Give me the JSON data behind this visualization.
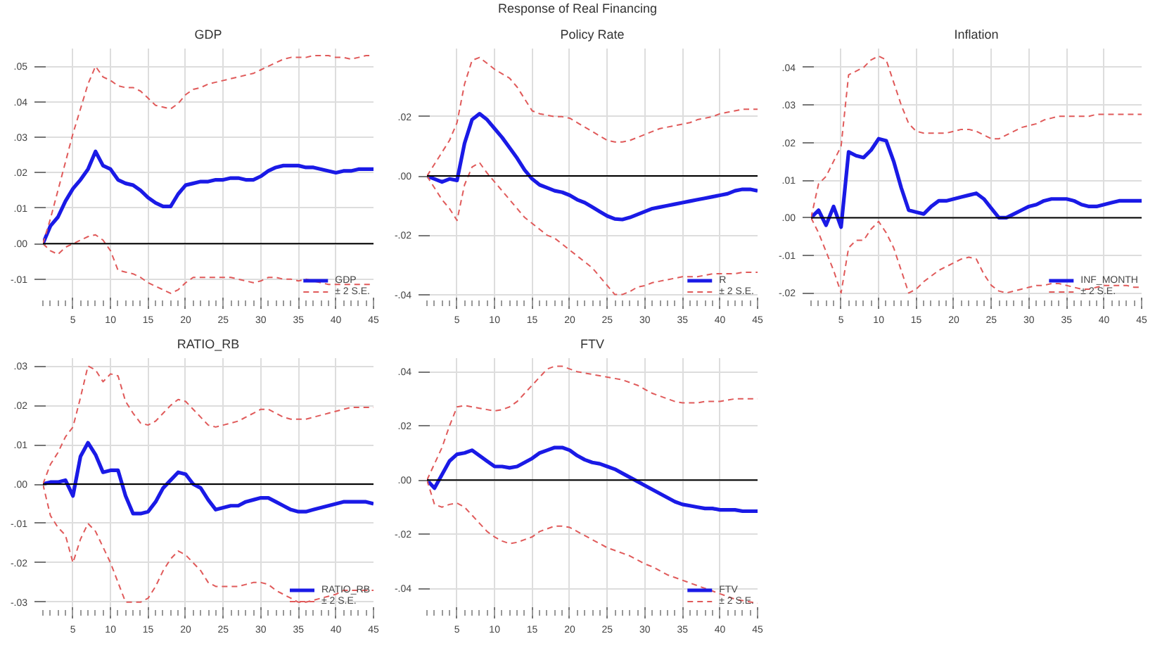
{
  "chart_data": [
    {
      "type": "line",
      "title": "GDP",
      "annotations": [
        "Response of Real Financing"
      ],
      "x": [
        1,
        2,
        3,
        4,
        5,
        6,
        7,
        8,
        9,
        10,
        11,
        12,
        13,
        14,
        15,
        16,
        17,
        18,
        19,
        20,
        21,
        22,
        23,
        24,
        25,
        26,
        27,
        28,
        29,
        30,
        31,
        32,
        33,
        34,
        35,
        36,
        37,
        38,
        39,
        40,
        41,
        42,
        43,
        44,
        45
      ],
      "xlim": [
        1,
        45
      ],
      "xticks": [
        5,
        10,
        15,
        20,
        25,
        30,
        35,
        40,
        45
      ],
      "ylim": [
        -0.016,
        0.055
      ],
      "yticks": [
        {
          "value": -0.01,
          "label": "-.01"
        },
        {
          "value": 0,
          "label": ".00"
        },
        {
          "value": 0.01,
          "label": ".01"
        },
        {
          "value": 0.02,
          "label": ".02"
        },
        {
          "value": 0.03,
          "label": ".03"
        },
        {
          "value": 0.04,
          "label": ".04"
        },
        {
          "value": 0.05,
          "label": ".05"
        }
      ],
      "grid": true,
      "legend": "bottom right",
      "ref_lines": [
        {
          "axis": "y",
          "value": 0,
          "color": "#000000"
        }
      ],
      "series": [
        {
          "name": "GDP",
          "color": "#1a1ae6",
          "line_style": "solid",
          "values": [
            0,
            0.005,
            0.0075,
            0.012,
            0.0155,
            0.018,
            0.021,
            0.026,
            0.022,
            0.021,
            0.018,
            0.017,
            0.0165,
            0.015,
            0.013,
            0.0115,
            0.0105,
            0.0105,
            0.014,
            0.0165,
            0.017,
            0.0175,
            0.0175,
            0.018,
            0.018,
            0.0185,
            0.0185,
            0.018,
            0.018,
            0.019,
            0.0205,
            0.0215,
            0.022,
            0.022,
            0.022,
            0.0215,
            0.0215,
            0.021,
            0.0205,
            0.02,
            0.0205,
            0.0205,
            0.021,
            0.021,
            0.021
          ]
        },
        {
          "name": "± 2 S.E.",
          "color": "#e05a5a",
          "line_style": "dashed",
          "values": [
            0,
            0.007,
            0.015,
            0.023,
            0.031,
            0.038,
            0.045,
            0.05,
            0.047,
            0.046,
            0.0445,
            0.044,
            0.044,
            0.043,
            0.041,
            0.039,
            0.0385,
            0.038,
            0.0395,
            0.042,
            0.0435,
            0.044,
            0.045,
            0.0455,
            0.046,
            0.0465,
            0.047,
            0.0475,
            0.048,
            0.049,
            0.05,
            0.051,
            0.052,
            0.0525,
            0.0525,
            0.0525,
            0.053,
            0.053,
            0.053,
            0.0525,
            0.0525,
            0.052,
            0.0525,
            0.053,
            0.053
          ]
        },
        {
          "color": "#e05a5a",
          "line_style": "dashed",
          "values": [
            0,
            -0.002,
            -0.003,
            -0.001,
            0,
            0.001,
            0.002,
            0.0025,
            0.001,
            -0.002,
            -0.0075,
            -0.008,
            -0.0085,
            -0.0095,
            -0.011,
            -0.012,
            -0.013,
            -0.014,
            -0.013,
            -0.011,
            -0.0095,
            -0.0095,
            -0.0095,
            -0.0095,
            -0.0095,
            -0.0095,
            -0.01,
            -0.0105,
            -0.011,
            -0.0105,
            -0.0095,
            -0.0095,
            -0.01,
            -0.01,
            -0.0105,
            -0.01,
            -0.0105,
            -0.011,
            -0.0115,
            -0.0115,
            -0.0115,
            -0.0115,
            -0.0115,
            -0.0115,
            -0.0115
          ]
        }
      ]
    },
    {
      "type": "line",
      "title": "Policy Rate",
      "x": [
        1,
        2,
        3,
        4,
        5,
        6,
        7,
        8,
        9,
        10,
        11,
        12,
        13,
        14,
        15,
        16,
        17,
        18,
        19,
        20,
        21,
        22,
        23,
        24,
        25,
        26,
        27,
        28,
        29,
        30,
        31,
        32,
        33,
        34,
        35,
        36,
        37,
        38,
        39,
        40,
        41,
        42,
        43,
        44,
        45
      ],
      "xlim": [
        1,
        45
      ],
      "xticks": [
        5,
        10,
        15,
        20,
        25,
        30,
        35,
        40,
        45
      ],
      "ylim": [
        -0.042,
        0.043
      ],
      "yticks": [
        {
          "value": -0.04,
          "label": "-.04"
        },
        {
          "value": -0.02,
          "label": "-.02"
        },
        {
          "value": 0,
          "label": ".00"
        },
        {
          "value": 0.02,
          "label": ".02"
        }
      ],
      "grid": true,
      "legend": "bottom right",
      "ref_lines": [
        {
          "axis": "y",
          "value": 0,
          "color": "#000000"
        }
      ],
      "series": [
        {
          "name": "R",
          "color": "#1a1ae6",
          "line_style": "solid",
          "values": [
            0,
            -0.001,
            -0.002,
            -0.001,
            -0.0015,
            0.011,
            0.019,
            0.021,
            0.019,
            0.016,
            0.013,
            0.0095,
            0.006,
            0.002,
            -0.001,
            -0.003,
            -0.004,
            -0.005,
            -0.0055,
            -0.0065,
            -0.008,
            -0.009,
            -0.0105,
            -0.012,
            -0.0135,
            -0.0145,
            -0.0147,
            -0.014,
            -0.013,
            -0.012,
            -0.011,
            -0.0105,
            -0.01,
            -0.0095,
            -0.009,
            -0.0085,
            -0.008,
            -0.0075,
            -0.007,
            -0.0065,
            -0.006,
            -0.005,
            -0.0045,
            -0.0045,
            -0.005
          ]
        },
        {
          "name": "± 2 S.E.",
          "color": "#e05a5a",
          "line_style": "dashed",
          "values": [
            0,
            0.004,
            0.008,
            0.012,
            0.018,
            0.031,
            0.039,
            0.04,
            0.038,
            0.036,
            0.0345,
            0.033,
            0.03,
            0.026,
            0.022,
            0.021,
            0.0205,
            0.02,
            0.02,
            0.0195,
            0.018,
            0.0165,
            0.015,
            0.0135,
            0.012,
            0.0115,
            0.0115,
            0.012,
            0.013,
            0.014,
            0.015,
            0.016,
            0.0165,
            0.017,
            0.0175,
            0.018,
            0.019,
            0.0195,
            0.02,
            0.021,
            0.0215,
            0.022,
            0.0225,
            0.0225,
            0.0225
          ]
        },
        {
          "color": "#e05a5a",
          "line_style": "dashed",
          "values": [
            0,
            -0.004,
            -0.008,
            -0.011,
            -0.015,
            -0.003,
            0.003,
            0.0045,
            0.001,
            -0.002,
            -0.005,
            -0.008,
            -0.011,
            -0.014,
            -0.016,
            -0.018,
            -0.02,
            -0.021,
            -0.023,
            -0.025,
            -0.027,
            -0.029,
            -0.031,
            -0.034,
            -0.037,
            -0.04,
            -0.04,
            -0.039,
            -0.0375,
            -0.037,
            -0.036,
            -0.0355,
            -0.035,
            -0.0345,
            -0.034,
            -0.034,
            -0.034,
            -0.0335,
            -0.033,
            -0.033,
            -0.033,
            -0.033,
            -0.0325,
            -0.0325,
            -0.0325
          ]
        }
      ]
    },
    {
      "type": "line",
      "title": "Inflation",
      "x": [
        1,
        2,
        3,
        4,
        5,
        6,
        7,
        8,
        9,
        10,
        11,
        12,
        13,
        14,
        15,
        16,
        17,
        18,
        19,
        20,
        21,
        22,
        23,
        24,
        25,
        26,
        27,
        28,
        29,
        30,
        31,
        32,
        33,
        34,
        35,
        36,
        37,
        38,
        39,
        40,
        41,
        42,
        43,
        44,
        45
      ],
      "xlim": [
        1,
        45
      ],
      "xticks": [
        5,
        10,
        15,
        20,
        25,
        30,
        35,
        40,
        45
      ],
      "ylim": [
        -0.022,
        0.045
      ],
      "yticks": [
        {
          "value": -0.02,
          "label": "-.02"
        },
        {
          "value": -0.01,
          "label": "-.01"
        },
        {
          "value": 0,
          "label": ".00"
        },
        {
          "value": 0.01,
          "label": ".01"
        },
        {
          "value": 0.02,
          "label": ".02"
        },
        {
          "value": 0.03,
          "label": ".03"
        },
        {
          "value": 0.04,
          "label": ".04"
        }
      ],
      "grid": true,
      "legend": "bottom right",
      "ref_lines": [
        {
          "axis": "y",
          "value": 0,
          "color": "#000000"
        }
      ],
      "series": [
        {
          "name": "INF_MONTH",
          "color": "#1a1ae6",
          "line_style": "solid",
          "values": [
            0,
            0.002,
            -0.002,
            0.003,
            -0.0025,
            0.0175,
            0.0165,
            0.016,
            0.018,
            0.021,
            0.0205,
            0.015,
            0.008,
            0.002,
            0.0015,
            0.001,
            0.003,
            0.0045,
            0.0045,
            0.005,
            0.0055,
            0.006,
            0.0065,
            0.005,
            0.0025,
            0,
            0,
            0.001,
            0.002,
            0.003,
            0.0035,
            0.0045,
            0.005,
            0.005,
            0.005,
            0.0045,
            0.0035,
            0.003,
            0.003,
            0.0035,
            0.004,
            0.0045,
            0.0045,
            0.0045,
            0.0045
          ]
        },
        {
          "name": "± 2 S.E.",
          "color": "#e05a5a",
          "line_style": "dashed",
          "values": [
            0,
            0.009,
            0.011,
            0.015,
            0.019,
            0.038,
            0.039,
            0.04,
            0.042,
            0.043,
            0.042,
            0.036,
            0.03,
            0.025,
            0.023,
            0.0225,
            0.0225,
            0.0225,
            0.0225,
            0.023,
            0.0235,
            0.0235,
            0.023,
            0.022,
            0.021,
            0.021,
            0.022,
            0.023,
            0.024,
            0.0245,
            0.025,
            0.026,
            0.0265,
            0.027,
            0.027,
            0.027,
            0.027,
            0.027,
            0.0275,
            0.0275,
            0.0275,
            0.0275,
            0.0275,
            0.0275,
            0.0275
          ]
        },
        {
          "color": "#e05a5a",
          "line_style": "dashed",
          "values": [
            0,
            -0.004,
            -0.009,
            -0.014,
            -0.02,
            -0.008,
            -0.006,
            -0.006,
            -0.003,
            -0.001,
            -0.004,
            -0.008,
            -0.014,
            -0.02,
            -0.019,
            -0.017,
            -0.0155,
            -0.014,
            -0.013,
            -0.012,
            -0.011,
            -0.0105,
            -0.011,
            -0.015,
            -0.018,
            -0.0195,
            -0.02,
            -0.0195,
            -0.019,
            -0.0185,
            -0.018,
            -0.018,
            -0.0175,
            -0.0175,
            -0.018,
            -0.0185,
            -0.019,
            -0.019,
            -0.0185,
            -0.018,
            -0.018,
            -0.018,
            -0.018,
            -0.0185,
            -0.0185
          ]
        }
      ]
    },
    {
      "type": "line",
      "title": "RATIO_RB",
      "x": [
        1,
        2,
        3,
        4,
        5,
        6,
        7,
        8,
        9,
        10,
        11,
        12,
        13,
        14,
        15,
        16,
        17,
        18,
        19,
        20,
        21,
        22,
        23,
        24,
        25,
        26,
        27,
        28,
        29,
        30,
        31,
        32,
        33,
        34,
        35,
        36,
        37,
        38,
        39,
        40,
        41,
        42,
        43,
        44,
        45
      ],
      "xlim": [
        1,
        45
      ],
      "xticks": [
        5,
        10,
        15,
        20,
        25,
        30,
        35,
        40,
        45
      ],
      "ylim": [
        -0.032,
        0.032
      ],
      "yticks": [
        {
          "value": -0.03,
          "label": "-.03"
        },
        {
          "value": -0.02,
          "label": "-.02"
        },
        {
          "value": -0.01,
          "label": "-.01"
        },
        {
          "value": 0,
          "label": ".00"
        },
        {
          "value": 0.01,
          "label": ".01"
        },
        {
          "value": 0.02,
          "label": ".02"
        },
        {
          "value": 0.03,
          "label": ".03"
        }
      ],
      "grid": true,
      "legend": "bottom right",
      "ref_lines": [
        {
          "axis": "y",
          "value": 0,
          "color": "#000000"
        }
      ],
      "series": [
        {
          "name": "RATIO_RB",
          "color": "#1a1ae6",
          "line_style": "solid",
          "values": [
            0,
            0.0005,
            0.0005,
            0.001,
            -0.003,
            0.007,
            0.0105,
            0.0075,
            0.003,
            0.0035,
            0.0035,
            -0.003,
            -0.0075,
            -0.0075,
            -0.007,
            -0.0045,
            -0.001,
            0.001,
            0.003,
            0.0025,
            0,
            -0.001,
            -0.004,
            -0.0065,
            -0.006,
            -0.0055,
            -0.0055,
            -0.0045,
            -0.004,
            -0.0035,
            -0.0035,
            -0.0045,
            -0.0055,
            -0.0065,
            -0.007,
            -0.007,
            -0.0065,
            -0.006,
            -0.0055,
            -0.005,
            -0.0045,
            -0.0045,
            -0.0045,
            -0.0045,
            -0.005
          ]
        },
        {
          "name": "± 2 S.E.",
          "color": "#e05a5a",
          "line_style": "dashed",
          "values": [
            0,
            0.005,
            0.008,
            0.012,
            0.0145,
            0.022,
            0.03,
            0.029,
            0.026,
            0.028,
            0.0275,
            0.021,
            0.018,
            0.0155,
            0.015,
            0.016,
            0.018,
            0.02,
            0.0215,
            0.021,
            0.019,
            0.017,
            0.015,
            0.0145,
            0.015,
            0.0155,
            0.016,
            0.017,
            0.018,
            0.019,
            0.019,
            0.018,
            0.017,
            0.0165,
            0.0165,
            0.0165,
            0.017,
            0.0175,
            0.018,
            0.0185,
            0.019,
            0.0195,
            0.0195,
            0.0195,
            0.0195
          ]
        },
        {
          "color": "#e05a5a",
          "line_style": "dashed",
          "values": [
            0,
            -0.008,
            -0.011,
            -0.013,
            -0.02,
            -0.014,
            -0.01,
            -0.012,
            -0.016,
            -0.02,
            -0.025,
            -0.03,
            -0.03,
            -0.03,
            -0.029,
            -0.026,
            -0.022,
            -0.019,
            -0.017,
            -0.018,
            -0.02,
            -0.022,
            -0.025,
            -0.026,
            -0.026,
            -0.026,
            -0.026,
            -0.0255,
            -0.025,
            -0.025,
            -0.0255,
            -0.027,
            -0.028,
            -0.029,
            -0.03,
            -0.03,
            -0.0295,
            -0.029,
            -0.0285,
            -0.028,
            -0.027,
            -0.027,
            -0.027,
            -0.027,
            -0.027
          ]
        }
      ]
    },
    {
      "type": "line",
      "title": "FTV",
      "x": [
        1,
        2,
        3,
        4,
        5,
        6,
        7,
        8,
        9,
        10,
        11,
        12,
        13,
        14,
        15,
        16,
        17,
        18,
        19,
        20,
        21,
        22,
        23,
        24,
        25,
        26,
        27,
        28,
        29,
        30,
        31,
        32,
        33,
        34,
        35,
        36,
        37,
        38,
        39,
        40,
        41,
        42,
        43,
        44,
        45
      ],
      "xlim": [
        1,
        45
      ],
      "xticks": [
        5,
        10,
        15,
        20,
        25,
        30,
        35,
        40,
        45
      ],
      "ylim": [
        -0.048,
        0.045
      ],
      "yticks": [
        {
          "value": -0.04,
          "label": "-.04"
        },
        {
          "value": -0.02,
          "label": "-.02"
        },
        {
          "value": 0,
          "label": ".00"
        },
        {
          "value": 0.02,
          "label": ".02"
        },
        {
          "value": 0.04,
          "label": ".04"
        }
      ],
      "grid": true,
      "legend": "bottom right",
      "ref_lines": [
        {
          "axis": "y",
          "value": 0,
          "color": "#000000"
        }
      ],
      "series": [
        {
          "name": "FTV",
          "color": "#1a1ae6",
          "line_style": "solid",
          "values": [
            0,
            -0.003,
            0.002,
            0.007,
            0.0095,
            0.01,
            0.011,
            0.009,
            0.007,
            0.005,
            0.005,
            0.0045,
            0.005,
            0.0065,
            0.008,
            0.01,
            0.011,
            0.012,
            0.012,
            0.011,
            0.009,
            0.0075,
            0.0065,
            0.006,
            0.005,
            0.004,
            0.0025,
            0.001,
            -0.0005,
            -0.002,
            -0.0035,
            -0.005,
            -0.0065,
            -0.008,
            -0.009,
            -0.0095,
            -0.01,
            -0.0105,
            -0.0105,
            -0.011,
            -0.011,
            -0.011,
            -0.0115,
            -0.0115,
            -0.0115
          ]
        },
        {
          "name": "± 2 S.E.",
          "color": "#e05a5a",
          "line_style": "dashed",
          "values": [
            0,
            0.006,
            0.012,
            0.02,
            0.027,
            0.0275,
            0.027,
            0.0265,
            0.026,
            0.0255,
            0.026,
            0.027,
            0.029,
            0.032,
            0.035,
            0.038,
            0.041,
            0.042,
            0.042,
            0.041,
            0.04,
            0.0395,
            0.039,
            0.0385,
            0.038,
            0.0375,
            0.037,
            0.036,
            0.035,
            0.0335,
            0.032,
            0.031,
            0.03,
            0.029,
            0.0285,
            0.0285,
            0.0285,
            0.029,
            0.029,
            0.029,
            0.0295,
            0.03,
            0.03,
            0.03,
            0.03
          ]
        },
        {
          "color": "#e05a5a",
          "line_style": "dashed",
          "values": [
            0,
            -0.009,
            -0.01,
            -0.009,
            -0.0085,
            -0.01,
            -0.013,
            -0.016,
            -0.019,
            -0.021,
            -0.0225,
            -0.0235,
            -0.023,
            -0.022,
            -0.021,
            -0.019,
            -0.018,
            -0.017,
            -0.017,
            -0.0175,
            -0.019,
            -0.0205,
            -0.022,
            -0.0235,
            -0.025,
            -0.026,
            -0.027,
            -0.028,
            -0.0295,
            -0.031,
            -0.032,
            -0.0335,
            -0.035,
            -0.036,
            -0.037,
            -0.038,
            -0.039,
            -0.04,
            -0.041,
            -0.042,
            -0.043,
            -0.044,
            -0.0445,
            -0.045,
            -0.0455
          ]
        }
      ]
    }
  ]
}
